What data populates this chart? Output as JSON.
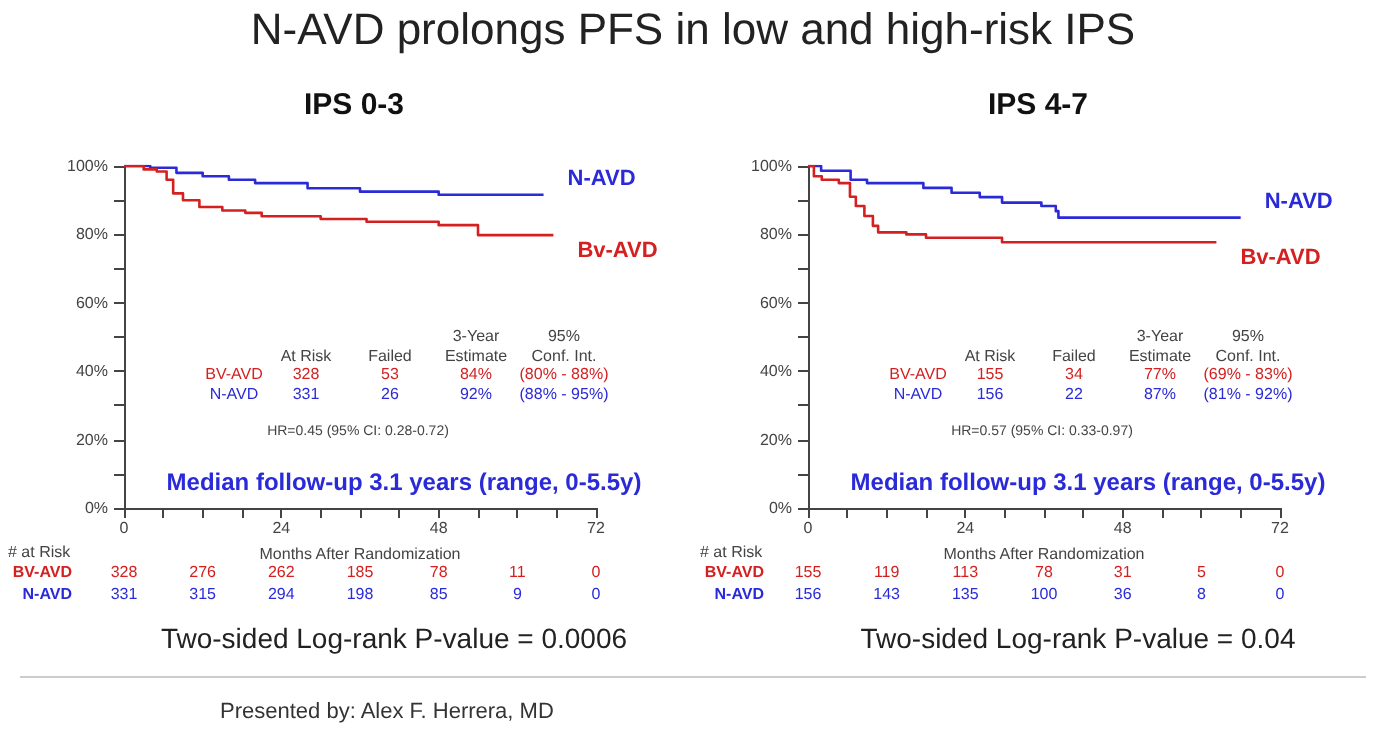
{
  "chart_data": [
    {
      "type": "step",
      "title": "IPS 0-3",
      "xlabel": "Months After Randomization",
      "xlim": [
        0,
        72
      ],
      "xticks": [
        0,
        {
          "value": 6,
          "label": null
        },
        {
          "value": 12,
          "label": null
        },
        {
          "value": 18,
          "label": null
        },
        24,
        {
          "value": 30,
          "label": null
        },
        {
          "value": 36,
          "label": null
        },
        {
          "value": 42,
          "label": null
        },
        48,
        {
          "value": 54,
          "label": null
        },
        {
          "value": 60,
          "label": null
        },
        {
          "value": 66,
          "label": null
        },
        72
      ],
      "ylim": [
        0,
        100
      ],
      "yticks": [
        {
          "value": 0,
          "label": "0%"
        },
        {
          "value": 10,
          "label": null
        },
        {
          "value": 20,
          "label": "20%"
        },
        {
          "value": 30,
          "label": null
        },
        {
          "value": 40,
          "label": "40%"
        },
        {
          "value": 50,
          "label": null
        },
        {
          "value": 60,
          "label": "60%"
        },
        {
          "value": 70,
          "label": null
        },
        {
          "value": 80,
          "label": "80%"
        },
        {
          "value": 90,
          "label": null
        },
        {
          "value": 100,
          "label": "100%"
        }
      ],
      "grid": false,
      "legend": false,
      "series": [
        {
          "name": "N-AVD",
          "color": "#2a2ad8",
          "x": [
            0,
            4,
            8,
            12,
            16,
            20,
            28,
            36,
            48,
            64
          ],
          "values": [
            100,
            99.5,
            98,
            97,
            96,
            95,
            93.5,
            92.5,
            91.6,
            91.6
          ]
        },
        {
          "name": "Bv-AVD",
          "color": "#d42020",
          "x": [
            0,
            3,
            5,
            6.5,
            7.5,
            9,
            11.5,
            15,
            18.5,
            21,
            30,
            37,
            48,
            54,
            65.5
          ],
          "values": [
            100,
            99,
            98.4,
            96,
            92,
            90,
            88,
            87,
            86.3,
            85.3,
            84.5,
            83.7,
            82.7,
            79.8,
            79.8
          ]
        }
      ],
      "annotations": [
        "At Risk",
        "Failed",
        "3-Year\nEstimate",
        "95%\nConf. Int.",
        "BV-AVD",
        "328",
        "53",
        "84%",
        "(80% - 88%)",
        "N-AVD",
        "331",
        "26",
        "92%",
        "(88% - 95%)",
        "HR=0.45 (95% CI: 0.28-0.72)",
        "Median follow-up 3.1 years (range, 0-5.5y)",
        "# at Risk",
        "BV-AVD",
        "328",
        "276",
        "262",
        "185",
        "78",
        "11",
        "0",
        "N-AVD",
        "331",
        "315",
        "294",
        "198",
        "85",
        "9",
        "0",
        "Two-sided Log-rank P-value = 0.0006",
        "N-AVD prolongs PFS in low and high-risk IPS",
        "Presented by: Alex F. Herrera, MD"
      ]
    },
    {
      "type": "step",
      "title": "IPS 4-7",
      "xlabel": "Months After Randomization",
      "xlim": [
        0,
        72
      ],
      "xticks": [
        0,
        {
          "value": 6,
          "label": null
        },
        {
          "value": 12,
          "label": null
        },
        {
          "value": 18,
          "label": null
        },
        24,
        {
          "value": 30,
          "label": null
        },
        {
          "value": 36,
          "label": null
        },
        {
          "value": 42,
          "label": null
        },
        48,
        {
          "value": 54,
          "label": null
        },
        {
          "value": 60,
          "label": null
        },
        {
          "value": 66,
          "label": null
        },
        72
      ],
      "ylim": [
        0,
        100
      ],
      "yticks": [
        {
          "value": 0,
          "label": "0%"
        },
        {
          "value": 10,
          "label": null
        },
        {
          "value": 20,
          "label": "20%"
        },
        {
          "value": 30,
          "label": null
        },
        {
          "value": 40,
          "label": "40%"
        },
        {
          "value": 50,
          "label": null
        },
        {
          "value": 60,
          "label": "60%"
        },
        {
          "value": 70,
          "label": null
        },
        {
          "value": 80,
          "label": "80%"
        },
        {
          "value": 90,
          "label": null
        },
        {
          "value": 100,
          "label": "100%"
        }
      ],
      "grid": false,
      "legend": false,
      "series": [
        {
          "name": "N-AVD",
          "color": "#2a2ad8",
          "x": [
            0,
            2,
            6,
            6.5,
            9,
            17.6,
            21.9,
            26.2,
            29.6,
            35.6,
            37.8,
            38.2,
            66
          ],
          "values": [
            100,
            98.6,
            98.6,
            96,
            95,
            93.6,
            92.2,
            90.9,
            89.3,
            88.3,
            86.8,
            84.9,
            84.9
          ]
        },
        {
          "name": "Bv-AVD",
          "color": "#d42020",
          "x": [
            0,
            0.9,
            2.1,
            4.7,
            6.4,
            7.3,
            8.6,
            9.9,
            10.7,
            15,
            18,
            29.6,
            62.3
          ],
          "values": [
            100,
            97,
            96,
            95,
            91,
            88.3,
            85.4,
            82.5,
            80.6,
            80,
            79,
            77.7,
            77.7
          ]
        }
      ],
      "annotations": [
        "At Risk",
        "Failed",
        "3-Year\nEstimate",
        "95%\nConf. Int.",
        "BV-AVD",
        "155",
        "34",
        "77%",
        "(69% - 83%)",
        "N-AVD",
        "156",
        "22",
        "87%",
        "(81% - 92%)",
        "HR=0.57 (95% CI: 0.33-0.97)",
        "Median follow-up 3.1 years (range, 0-5.5y)",
        "# at Risk",
        "BV-AVD",
        "155",
        "119",
        "113",
        "78",
        "31",
        "5",
        "0",
        "N-AVD",
        "156",
        "143",
        "135",
        "100",
        "36",
        "8",
        "0",
        "Two-sided Log-rank P-value = 0.04"
      ]
    }
  ]
}
